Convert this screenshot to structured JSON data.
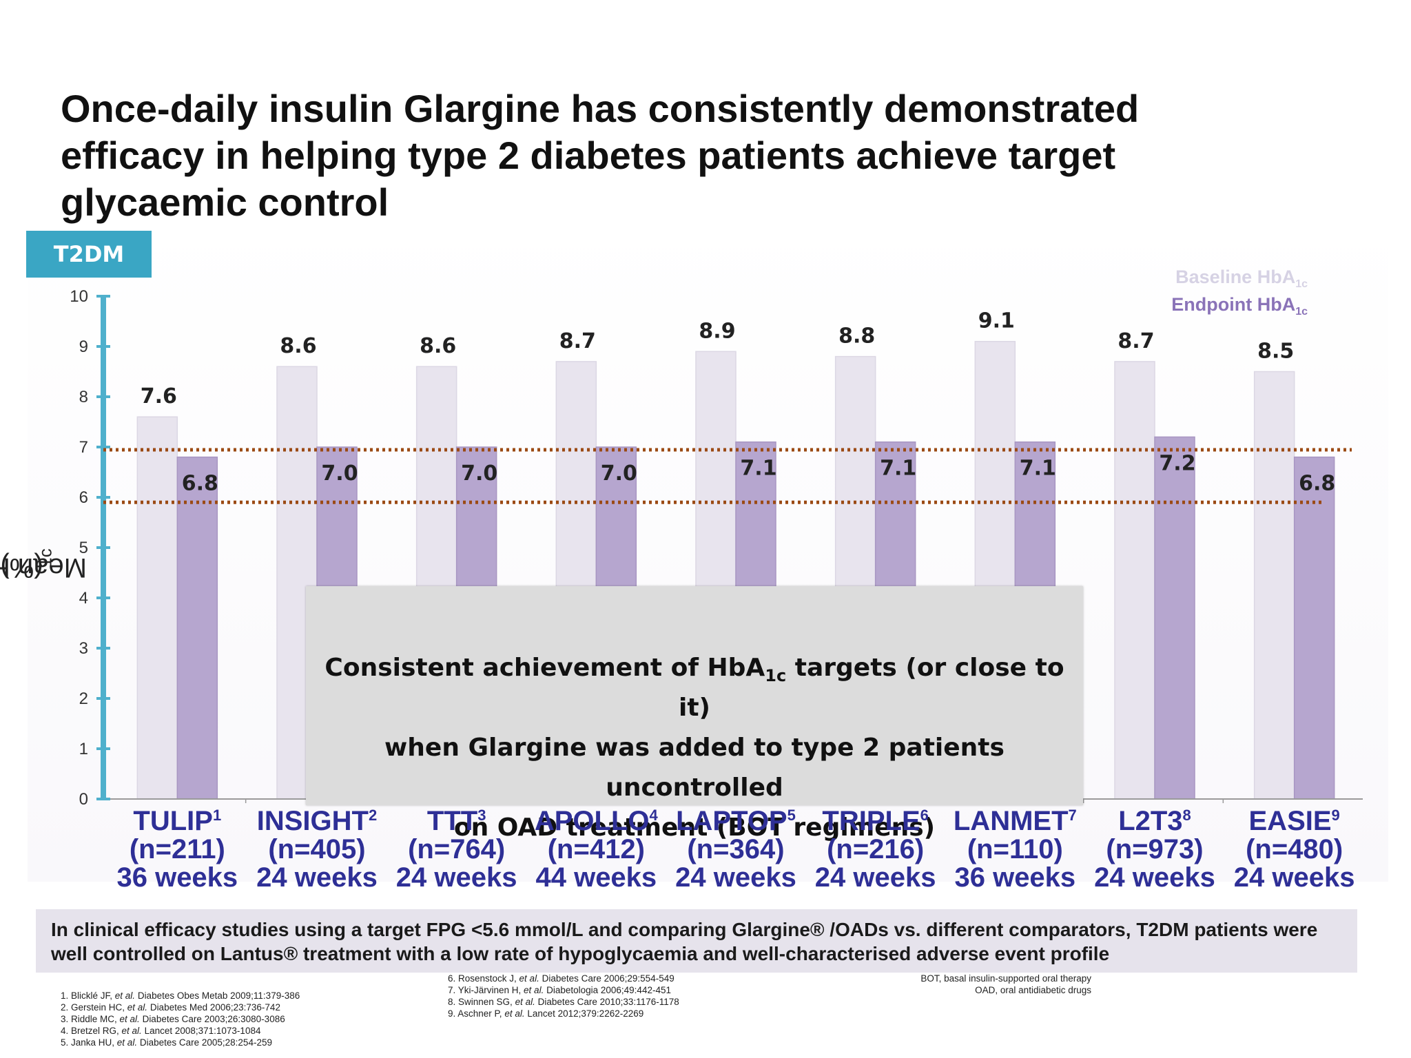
{
  "slide": {
    "title": "Once-daily insulin Glargine has consistently demonstrated efficacy in helping type 2 diabetes patients achieve target glycaemic control",
    "badge": "T2DM",
    "ylabel_main": "Mean HbA",
    "ylabel_sub": "1c",
    "ylabel_unit": " (%)",
    "legend": {
      "baseline_main": "Baseline HbA",
      "endpoint_main": "Endpoint HbA",
      "sub": "1c"
    },
    "overlay": {
      "line1_a": "Consistent achievement of HbA",
      "line1_sub": "1c",
      "line1_b": " targets (or close to it)",
      "line2": "when Glargine was added to type 2 patients uncontrolled",
      "line3": "on OAD treatment (BOT regimens)"
    },
    "summary": "In clinical efficacy studies using a target FPG <5.6 mmol/L and comparing Glargine® /OADs vs. different comparators, T2DM patients were well controlled on Lantus® treatment with a low rate of hypoglycaemia and well-characterised adverse event profile",
    "studies": [
      {
        "name": "TULIP",
        "ref": "1",
        "n": "(n=211)",
        "weeks": "36 weeks"
      },
      {
        "name": "INSIGHT",
        "ref": "2",
        "n": "(n=405)",
        "weeks": "24 weeks"
      },
      {
        "name": "TTT",
        "ref": "3",
        "n": "(n=764)",
        "weeks": "24 weeks"
      },
      {
        "name": "APOLLO",
        "ref": "4",
        "n": "(n=412)",
        "weeks": "44 weeks"
      },
      {
        "name": "LAPTOP",
        "ref": "5",
        "n": "(n=364)",
        "weeks": "24 weeks"
      },
      {
        "name": "TRIPLE",
        "ref": "6",
        "n": "(n=216)",
        "weeks": "24 weeks"
      },
      {
        "name": "LANMET",
        "ref": "7",
        "n": "(n=110)",
        "weeks": "36 weeks"
      },
      {
        "name": "L2T3",
        "ref": "8",
        "n": "(n=973)",
        "weeks": "24 weeks"
      },
      {
        "name": "EASIE",
        "ref": "9",
        "n": "(n=480)",
        "weeks": "24 weeks"
      }
    ],
    "references_left": [
      {
        "pre": "1. Blicklé JF, ",
        "etal": "et al.",
        "post": " Diabetes Obes Metab 2009;11:379-386"
      },
      {
        "pre": "2. Gerstein HC, ",
        "etal": "et al.",
        "post": " Diabetes Med 2006;23:736-742"
      },
      {
        "pre": "3. Riddle MC, ",
        "etal": "et al.",
        "post": " Diabetes Care 2003;26:3080-3086"
      },
      {
        "pre": "4. Bretzel RG, ",
        "etal": "et al.",
        "post": " Lancet 2008;371:1073-1084"
      },
      {
        "pre": "5. Janka HU, ",
        "etal": "et al.",
        "post": " Diabetes Care 2005;28:254-259"
      }
    ],
    "references_mid": [
      {
        "pre": "6. Rosenstock J, ",
        "etal": "et al.",
        "post": " Diabetes Care 2006;29:554-549"
      },
      {
        "pre": "7. Yki-Järvinen H, ",
        "etal": "et al.",
        "post": " Diabetologia 2006;49:442-451"
      },
      {
        "pre": "8. Swinnen SG, ",
        "etal": "et al.",
        "post": " Diabetes Care 2010;33:1176-1178"
      },
      {
        "pre": "9. Aschner P, ",
        "etal": "et al.",
        "post": " Lancet 2012;379:2262-2269"
      }
    ],
    "abbreviations": [
      "BOT, basal insulin-supported oral therapy",
      "OAD, oral antidiabetic drugs"
    ],
    "colors": {
      "baseline": "#e8e4ee",
      "endpoint": "#b6a6cf",
      "axis": "#4fb0cc",
      "target_line": "#9b4a14",
      "study_text": "#2e2f96"
    }
  },
  "chart_data": {
    "type": "bar",
    "categories": [
      "TULIP",
      "INSIGHT",
      "TTT",
      "APOLLO",
      "LAPTOP",
      "TRIPLE",
      "LANMET",
      "L2T3",
      "EASIE"
    ],
    "series": [
      {
        "name": "Baseline HbA1c",
        "values": [
          7.6,
          8.6,
          8.6,
          8.7,
          8.9,
          8.8,
          9.1,
          8.7,
          8.5
        ]
      },
      {
        "name": "Endpoint HbA1c",
        "values": [
          6.8,
          7.0,
          7.0,
          7.0,
          7.1,
          7.1,
          7.1,
          7.2,
          6.8
        ]
      }
    ],
    "value_labels": {
      "baseline": [
        "7.6",
        "8.6",
        "8.6",
        "8.7",
        "8.9",
        "8.8",
        "9.1",
        "8.7",
        "8.5"
      ],
      "endpoint": [
        "6.8",
        "7.0",
        "7.0",
        "7.0",
        "7.1",
        "7.1",
        "7.1",
        "7.2",
        "6.8"
      ]
    },
    "yticks": [
      "0",
      "1",
      "2",
      "3",
      "4",
      "5",
      "6",
      "7",
      "8",
      "9",
      "10"
    ],
    "ylim": [
      0,
      10
    ],
    "reference_lines": [
      7.0,
      5.9
    ],
    "ylabel": "Mean HbA1c (%)",
    "xlabel": "",
    "grid": false,
    "legend_position": "top-right"
  }
}
